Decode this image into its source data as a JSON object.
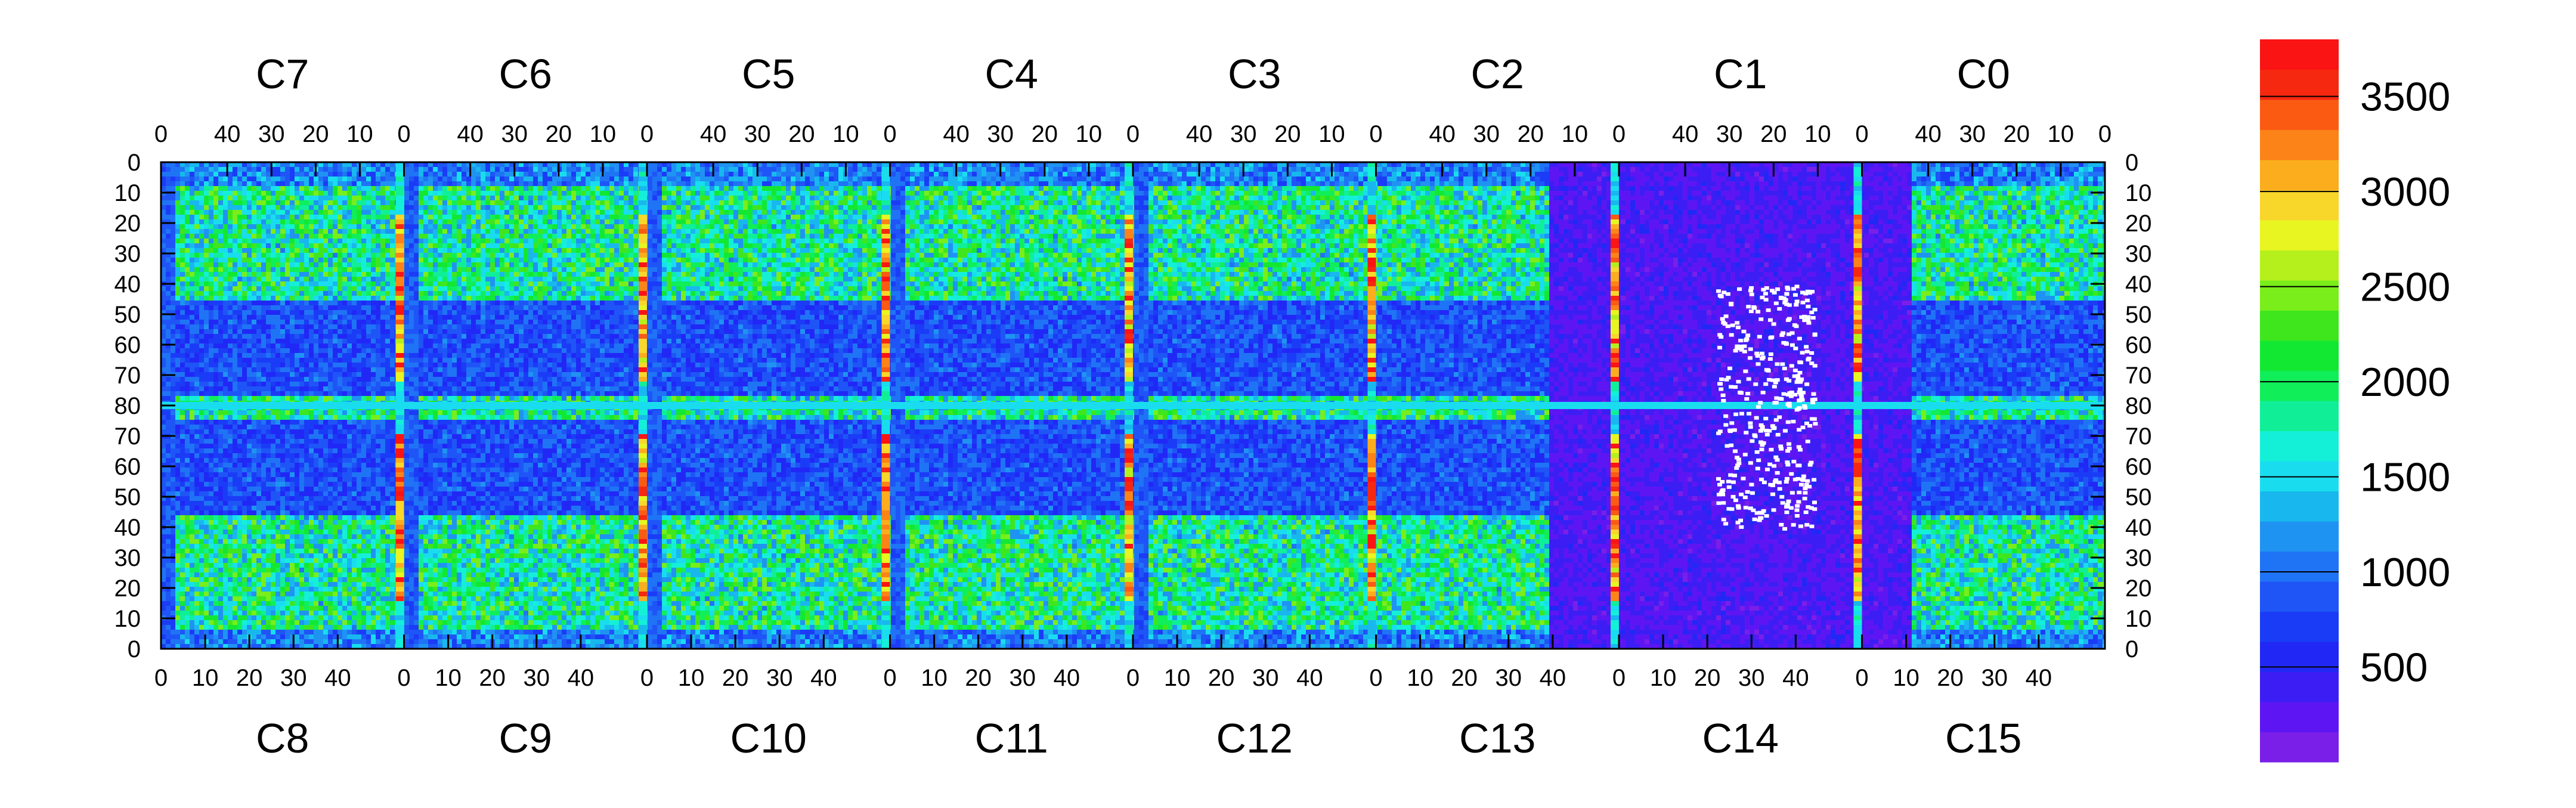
{
  "chart_data": {
    "type": "heatmap",
    "title": "",
    "top_chip_labels": [
      "C7",
      "C6",
      "C5",
      "C4",
      "C3",
      "C2",
      "C1",
      "C0"
    ],
    "bottom_chip_labels": [
      "C8",
      "C9",
      "C10",
      "C11",
      "C12",
      "C13",
      "C14",
      "C15"
    ],
    "top_x_ticks": [
      "40",
      "30",
      "20",
      "10",
      "0"
    ],
    "top_x_ticks_first": [
      "0"
    ],
    "bottom_x_ticks": [
      "0",
      "10",
      "20",
      "30",
      "40"
    ],
    "y_ticks": [
      "0",
      "10",
      "20",
      "30",
      "40",
      "50",
      "60",
      "70",
      "80",
      "70",
      "60",
      "50",
      "40",
      "30",
      "20",
      "10",
      "0"
    ],
    "colorbar": {
      "range": [
        0,
        3800
      ],
      "ticks": [
        "500",
        "1000",
        "1500",
        "2000",
        "2500",
        "3000",
        "3500"
      ],
      "tick_values": [
        500,
        1000,
        1500,
        2000,
        2500,
        3000,
        3500
      ],
      "palette": [
        "#7a1fe8",
        "#5d16f3",
        "#3c1ef4",
        "#2128f6",
        "#1b3cf6",
        "#1f55f6",
        "#1f74f5",
        "#1f93f2",
        "#18b8ef",
        "#19ddef",
        "#14f0d8",
        "#10ef98",
        "#10ee5a",
        "#12e832",
        "#3fe61e",
        "#79ee1a",
        "#b6f01c",
        "#e8f521",
        "#f9d62a",
        "#fbad1e",
        "#fb8317",
        "#fb5a12",
        "#f62810",
        "#fa1414"
      ]
    },
    "grid": false,
    "colorscale": "rainbow",
    "notes": ""
  }
}
